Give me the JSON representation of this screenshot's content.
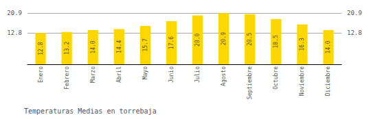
{
  "chart_data": {
    "type": "bar",
    "title": "Temperaturas Medias en torrebaja",
    "categories": [
      "Enero",
      "Febrero",
      "Marzo",
      "Abril",
      "Mayo",
      "Junio",
      "Julio",
      "Agosto",
      "Septiembre",
      "Octubre",
      "Noviembre",
      "Diciembre"
    ],
    "values": [
      12.8,
      13.2,
      14.0,
      14.4,
      15.7,
      17.6,
      20.0,
      20.9,
      20.5,
      18.5,
      16.3,
      14.0
    ],
    "value_labels": [
      "12.8",
      "13.2",
      "14.0",
      "14.4",
      "15.7",
      "17.6",
      "20.0",
      "20.9",
      "20.5",
      "18.5",
      "16.3",
      "14.0"
    ],
    "color": "#FFD700",
    "ylim": [
      0,
      23.5
    ],
    "yticks": [
      12.8,
      20.9
    ],
    "y2lim": [
      0,
      23.5
    ],
    "y2ticks": [
      12.8,
      20.9
    ],
    "grid": true,
    "data_labels": true
  }
}
